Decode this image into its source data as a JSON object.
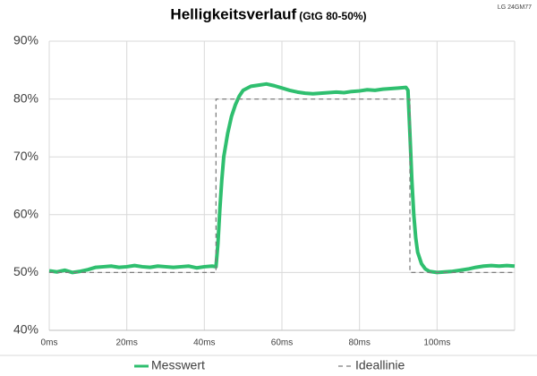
{
  "chart_data": {
    "type": "line",
    "title": "Helligkeitsverlauf",
    "subtitle": "(GtG 80-50%)",
    "annotation": "LG 24GM77",
    "xlim": [
      0,
      120
    ],
    "xticks": [
      {
        "value": 0,
        "label": "0ms"
      },
      {
        "value": 20,
        "label": "20ms"
      },
      {
        "value": 40,
        "label": "40ms"
      },
      {
        "value": 60,
        "label": "60ms"
      },
      {
        "value": 80,
        "label": "80ms"
      },
      {
        "value": 100,
        "label": "100ms"
      }
    ],
    "ylim": [
      40,
      90
    ],
    "yticks": [
      {
        "value": 40,
        "label": "40%"
      },
      {
        "value": 50,
        "label": "50%"
      },
      {
        "value": 60,
        "label": "60%"
      },
      {
        "value": 70,
        "label": "70%"
      },
      {
        "value": 80,
        "label": "80%"
      },
      {
        "value": 90,
        "label": "90%"
      }
    ],
    "grid": true,
    "series": [
      {
        "name": "Messwert",
        "color": "#2fbf6f",
        "line_style": "solid",
        "x": [
          0,
          2,
          4,
          6,
          8,
          10,
          12,
          14,
          16,
          18,
          20,
          22,
          24,
          26,
          28,
          30,
          32,
          34,
          36,
          38,
          40,
          42,
          43,
          43.5,
          44,
          44.5,
          45,
          46,
          47,
          48,
          49,
          50,
          52,
          54,
          56,
          58,
          60,
          62,
          64,
          66,
          68,
          70,
          72,
          74,
          76,
          78,
          80,
          82,
          84,
          86,
          88,
          90,
          92,
          92.5,
          93,
          93.5,
          94,
          94.5,
          95,
          96,
          97,
          98,
          100,
          102,
          104,
          106,
          108,
          110,
          112,
          114,
          116,
          118,
          120
        ],
        "values": [
          50.3,
          50.1,
          50.4,
          50.0,
          50.2,
          50.5,
          50.9,
          51.0,
          51.1,
          50.9,
          51.0,
          51.2,
          51.0,
          50.9,
          51.1,
          51.0,
          50.9,
          51.0,
          51.1,
          50.8,
          51.0,
          51.1,
          51.0,
          55,
          61,
          66,
          70,
          74,
          77,
          79,
          80.5,
          81.5,
          82.2,
          82.4,
          82.6,
          82.3,
          81.9,
          81.5,
          81.2,
          81.0,
          80.9,
          81.0,
          81.1,
          81.2,
          81.1,
          81.3,
          81.4,
          81.6,
          81.5,
          81.7,
          81.8,
          81.9,
          82.0,
          81.5,
          74,
          66,
          60,
          56,
          53.5,
          51.5,
          50.6,
          50.2,
          50.0,
          50.1,
          50.2,
          50.4,
          50.6,
          50.9,
          51.1,
          51.2,
          51.1,
          51.2,
          51.1
        ]
      },
      {
        "name": "Ideallinie",
        "color": "#7f7f7f",
        "line_style": "dashed",
        "x": [
          0,
          43,
          43,
          93,
          93,
          120
        ],
        "values": [
          50,
          50,
          80,
          80,
          50,
          50
        ]
      }
    ]
  }
}
